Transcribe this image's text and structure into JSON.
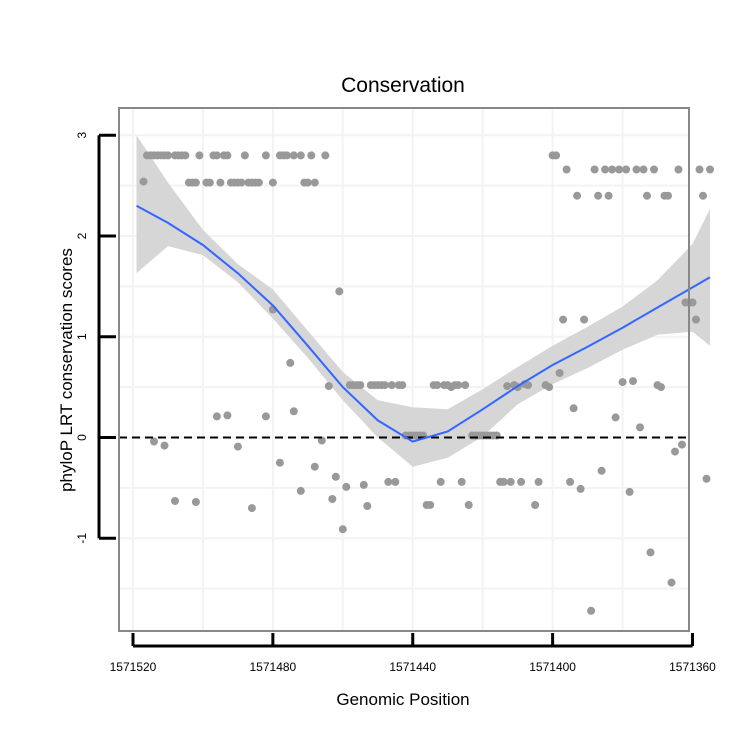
{
  "chart_data": {
    "type": "scatter",
    "title": "Conservation",
    "xlabel": "Genomic Position",
    "ylabel": "phyloP LRT conservation scores",
    "x_reversed": true,
    "xlim": [
      1571524,
      1571361
    ],
    "ylim": [
      -1.92,
      3.27
    ],
    "x_ticks": [
      1571520,
      1571480,
      1571440,
      1571400,
      1571360
    ],
    "x_tick_labels": [
      "1571520",
      "1571480",
      "1571440",
      "1571400",
      "1571360"
    ],
    "y_ticks": [
      3,
      2,
      1,
      0,
      -1
    ],
    "y_tick_labels": [
      "3",
      "2",
      "1",
      "0",
      "-1"
    ],
    "reference_line": {
      "y": 0,
      "style": "dashed"
    },
    "points": [
      [
        1571517,
        2.54
      ],
      [
        1571516,
        2.8
      ],
      [
        1571515,
        2.8
      ],
      [
        1571514,
        2.8
      ],
      [
        1571513,
        2.8
      ],
      [
        1571512,
        2.8
      ],
      [
        1571511,
        2.8
      ],
      [
        1571510,
        2.8
      ],
      [
        1571508,
        2.8
      ],
      [
        1571507,
        2.8
      ],
      [
        1571506,
        2.8
      ],
      [
        1571505,
        2.8
      ],
      [
        1571504,
        2.53
      ],
      [
        1571503,
        2.53
      ],
      [
        1571502,
        2.53
      ],
      [
        1571501,
        2.8
      ],
      [
        1571499,
        2.53
      ],
      [
        1571498,
        2.53
      ],
      [
        1571497,
        2.8
      ],
      [
        1571496,
        2.8
      ],
      [
        1571495,
        2.53
      ],
      [
        1571494,
        2.8
      ],
      [
        1571493,
        2.8
      ],
      [
        1571492,
        2.53
      ],
      [
        1571491,
        2.53
      ],
      [
        1571490,
        2.53
      ],
      [
        1571489,
        2.53
      ],
      [
        1571488,
        2.8
      ],
      [
        1571487,
        2.53
      ],
      [
        1571486,
        2.53
      ],
      [
        1571485,
        2.53
      ],
      [
        1571484,
        2.53
      ],
      [
        1571482,
        2.8
      ],
      [
        1571480,
        2.53
      ],
      [
        1571478,
        2.8
      ],
      [
        1571477,
        2.8
      ],
      [
        1571476,
        2.8
      ],
      [
        1571474,
        2.8
      ],
      [
        1571472,
        2.8
      ],
      [
        1571471,
        2.53
      ],
      [
        1571470,
        2.53
      ],
      [
        1571469,
        2.8
      ],
      [
        1571468,
        2.53
      ],
      [
        1571465,
        2.8
      ],
      [
        1571514,
        -0.04
      ],
      [
        1571511,
        -0.08
      ],
      [
        1571508,
        -0.63
      ],
      [
        1571502,
        -0.64
      ],
      [
        1571496,
        0.21
      ],
      [
        1571493,
        0.22
      ],
      [
        1571490,
        -0.09
      ],
      [
        1571486,
        -0.7
      ],
      [
        1571482,
        0.21
      ],
      [
        1571480,
        1.27
      ],
      [
        1571478,
        -0.25
      ],
      [
        1571475,
        0.74
      ],
      [
        1571474,
        0.26
      ],
      [
        1571472,
        -0.53
      ],
      [
        1571468,
        -0.29
      ],
      [
        1571466,
        -0.03
      ],
      [
        1571464,
        0.51
      ],
      [
        1571463,
        -0.61
      ],
      [
        1571462,
        -0.39
      ],
      [
        1571461,
        1.45
      ],
      [
        1571460,
        -0.91
      ],
      [
        1571459,
        -0.49
      ],
      [
        1571458,
        0.52
      ],
      [
        1571457,
        0.52
      ],
      [
        1571456,
        0.52
      ],
      [
        1571455,
        0.52
      ],
      [
        1571454,
        -0.47
      ],
      [
        1571453,
        -0.68
      ],
      [
        1571452,
        0.52
      ],
      [
        1571451,
        0.52
      ],
      [
        1571450,
        0.52
      ],
      [
        1571449,
        0.52
      ],
      [
        1571448,
        0.52
      ],
      [
        1571447,
        -0.44
      ],
      [
        1571446,
        0.52
      ],
      [
        1571445,
        -0.44
      ],
      [
        1571444,
        0.52
      ],
      [
        1571443,
        0.52
      ],
      [
        1571442,
        0.02
      ],
      [
        1571441,
        0.02
      ],
      [
        1571440,
        0.02
      ],
      [
        1571439,
        0.02
      ],
      [
        1571438,
        0.02
      ],
      [
        1571437,
        0.02
      ],
      [
        1571436,
        -0.67
      ],
      [
        1571435,
        -0.67
      ],
      [
        1571434,
        0.52
      ],
      [
        1571433,
        0.52
      ],
      [
        1571432,
        -0.44
      ],
      [
        1571431,
        0.52
      ],
      [
        1571430,
        0.52
      ],
      [
        1571429,
        0.5
      ],
      [
        1571428,
        0.52
      ],
      [
        1571427,
        0.52
      ],
      [
        1571426,
        -0.44
      ],
      [
        1571425,
        0.52
      ],
      [
        1571424,
        -0.67
      ],
      [
        1571423,
        0.02
      ],
      [
        1571422,
        0.02
      ],
      [
        1571421,
        0.02
      ],
      [
        1571420,
        0.02
      ],
      [
        1571419,
        0.02
      ],
      [
        1571418,
        0.02
      ],
      [
        1571417,
        0.02
      ],
      [
        1571416,
        0.02
      ],
      [
        1571415,
        -0.44
      ],
      [
        1571414,
        -0.44
      ],
      [
        1571413,
        0.51
      ],
      [
        1571412,
        -0.44
      ],
      [
        1571411,
        0.52
      ],
      [
        1571410,
        0.5
      ],
      [
        1571409,
        -0.44
      ],
      [
        1571408,
        0.53
      ],
      [
        1571407,
        0.52
      ],
      [
        1571405,
        -0.67
      ],
      [
        1571404,
        -0.44
      ],
      [
        1571402,
        0.52
      ],
      [
        1571401,
        0.5
      ],
      [
        1571400,
        2.8
      ],
      [
        1571399,
        2.8
      ],
      [
        1571398,
        0.64
      ],
      [
        1571397,
        1.17
      ],
      [
        1571396,
        2.66
      ],
      [
        1571395,
        -0.44
      ],
      [
        1571394,
        0.29
      ],
      [
        1571393,
        2.4
      ],
      [
        1571392,
        -0.51
      ],
      [
        1571391,
        1.17
      ],
      [
        1571389,
        -1.72
      ],
      [
        1571388,
        2.66
      ],
      [
        1571387,
        2.4
      ],
      [
        1571386,
        -0.33
      ],
      [
        1571385,
        2.66
      ],
      [
        1571384,
        2.4
      ],
      [
        1571383,
        2.66
      ],
      [
        1571382,
        0.2
      ],
      [
        1571381,
        2.66
      ],
      [
        1571380,
        0.55
      ],
      [
        1571379,
        2.66
      ],
      [
        1571378,
        -0.54
      ],
      [
        1571377,
        0.56
      ],
      [
        1571376,
        2.66
      ],
      [
        1571375,
        0.1
      ],
      [
        1571374,
        2.66
      ],
      [
        1571373,
        2.4
      ],
      [
        1571372,
        -1.14
      ],
      [
        1571371,
        2.66
      ],
      [
        1571370,
        0.52
      ],
      [
        1571369,
        0.5
      ],
      [
        1571368,
        2.4
      ],
      [
        1571367,
        2.4
      ],
      [
        1571366,
        -1.44
      ],
      [
        1571365,
        -0.14
      ],
      [
        1571364,
        2.66
      ],
      [
        1571363,
        -0.07
      ],
      [
        1571362,
        1.34
      ],
      [
        1571361,
        1.34
      ],
      [
        1571360,
        1.34
      ],
      [
        1571359,
        1.17
      ],
      [
        1571358,
        2.66
      ],
      [
        1571357,
        2.4
      ],
      [
        1571356,
        -0.41
      ],
      [
        1571355,
        2.66
      ]
    ],
    "smooth": {
      "x": [
        1571519,
        1571510,
        1571500,
        1571490,
        1571480,
        1571470,
        1571460,
        1571450,
        1571440,
        1571430,
        1571420,
        1571410,
        1571400,
        1571390,
        1571380,
        1571370,
        1571360,
        1571355
      ],
      "y": [
        2.3,
        2.13,
        1.91,
        1.63,
        1.31,
        0.91,
        0.5,
        0.17,
        -0.04,
        0.06,
        0.28,
        0.51,
        0.72,
        0.9,
        1.09,
        1.29,
        1.49,
        1.59
      ],
      "lower": [
        1.63,
        1.9,
        1.81,
        1.54,
        1.18,
        0.79,
        0.37,
        0.0,
        -0.29,
        -0.2,
        0.01,
        0.33,
        0.53,
        0.69,
        0.87,
        1.02,
        1.05,
        0.91
      ],
      "upper": [
        3.0,
        2.53,
        2.06,
        1.72,
        1.47,
        1.06,
        0.65,
        0.37,
        0.3,
        0.28,
        0.48,
        0.7,
        0.91,
        1.1,
        1.3,
        1.56,
        1.92,
        2.27
      ]
    },
    "colors": {
      "points": "#999999",
      "smooth_line": "#3366FF",
      "ribbon": "#d6d6d6",
      "reference_line": "#000000",
      "panel_border": "#888888",
      "grid": "#f3f3f3",
      "axis": "#000000"
    }
  }
}
